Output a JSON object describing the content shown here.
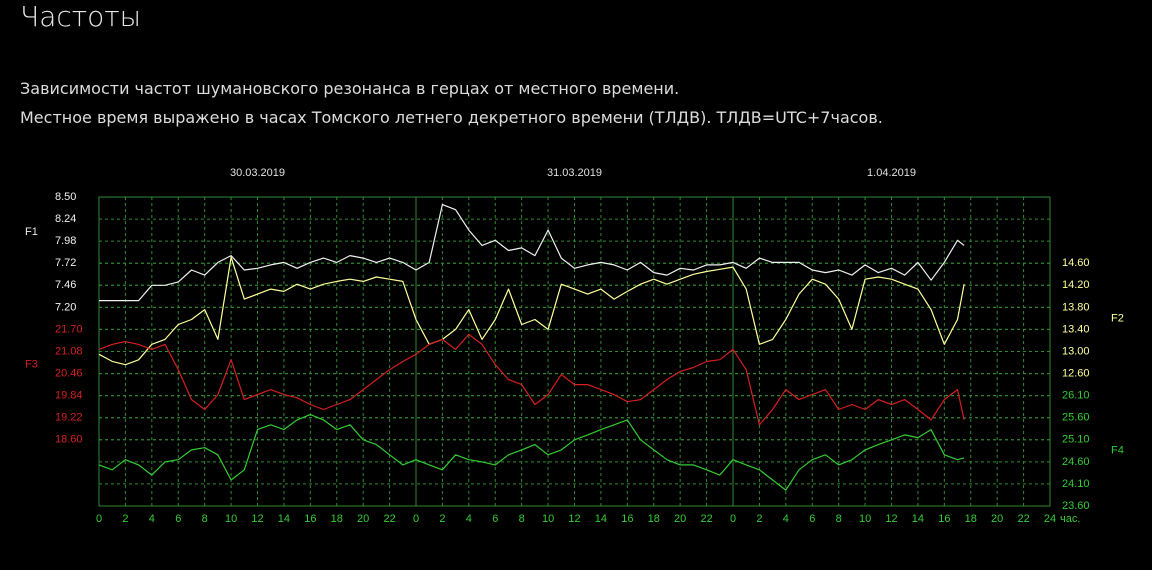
{
  "page": {
    "title": "Частоты",
    "description": [
      "Зависимости частот шумановского резонанса в герцах от местного времени.",
      "Местное время выражено в часах Томского летнего декретного времени (ТЛДВ). ТЛДВ=UTC+7часов."
    ]
  },
  "chart_data": {
    "type": "line",
    "day_labels": [
      "30.03.2019",
      "31.03.2019",
      "1.04.2019"
    ],
    "x_unit": "час.",
    "xlim": [
      0,
      72
    ],
    "xticks": [
      0,
      2,
      4,
      6,
      8,
      10,
      12,
      14,
      16,
      18,
      20,
      22,
      {
        "value": 24,
        "label": "0"
      },
      {
        "value": 26,
        "label": "2"
      },
      {
        "value": 28,
        "label": "4"
      },
      {
        "value": 30,
        "label": "6"
      },
      {
        "value": 32,
        "label": "8"
      },
      {
        "value": 34,
        "label": "10"
      },
      {
        "value": 36,
        "label": "12"
      },
      {
        "value": 38,
        "label": "14"
      },
      {
        "value": 40,
        "label": "16"
      },
      {
        "value": 42,
        "label": "18"
      },
      {
        "value": 44,
        "label": "20"
      },
      {
        "value": 46,
        "label": "22"
      },
      {
        "value": 48,
        "label": "0"
      },
      {
        "value": 50,
        "label": "2"
      },
      {
        "value": 52,
        "label": "4"
      },
      {
        "value": 54,
        "label": "6"
      },
      {
        "value": 56,
        "label": "8"
      },
      {
        "value": 58,
        "label": "10"
      },
      {
        "value": 60,
        "label": "12"
      },
      {
        "value": 62,
        "label": "14"
      },
      {
        "value": 64,
        "label": "16"
      },
      {
        "value": 66,
        "label": "18"
      },
      {
        "value": 68,
        "label": "20"
      },
      {
        "value": 70,
        "label": "22"
      },
      {
        "value": 72,
        "label": "24"
      }
    ],
    "x": [
      0,
      1,
      2,
      3,
      4,
      5,
      6,
      7,
      8,
      9,
      10,
      11,
      12,
      13,
      14,
      15,
      16,
      17,
      18,
      19,
      20,
      21,
      22,
      23,
      24,
      25,
      26,
      27,
      28,
      29,
      30,
      31,
      32,
      33,
      34,
      35,
      36,
      37,
      38,
      39,
      40,
      41,
      42,
      43,
      44,
      45,
      46,
      47,
      48,
      49,
      50,
      51,
      52,
      53,
      54,
      55,
      56,
      57,
      58,
      59,
      60,
      61,
      62,
      63,
      64,
      65,
      65.5
    ],
    "grid": true,
    "series": [
      {
        "name": "F1",
        "color": "#f0f0f0",
        "side": "left",
        "ylim": [
          4.86,
          8.5
        ],
        "yticks": [
          {
            "value": 8.5,
            "label": "8.50"
          },
          8.24,
          7.98,
          7.72,
          7.46,
          {
            "value": 7.2,
            "label": "7.20"
          }
        ],
        "values": [
          7.28,
          7.28,
          7.28,
          7.28,
          7.46,
          7.46,
          7.5,
          7.64,
          7.58,
          7.73,
          7.81,
          7.64,
          7.66,
          7.7,
          7.73,
          7.66,
          7.73,
          7.78,
          7.73,
          7.81,
          7.78,
          7.73,
          7.78,
          7.73,
          7.64,
          7.73,
          8.41,
          8.35,
          8.11,
          7.93,
          7.99,
          7.87,
          7.9,
          7.81,
          8.11,
          7.78,
          7.66,
          7.7,
          7.73,
          7.7,
          7.64,
          7.73,
          7.61,
          7.58,
          7.66,
          7.64,
          7.7,
          7.7,
          7.73,
          7.66,
          7.78,
          7.73,
          7.73,
          7.73,
          7.64,
          7.61,
          7.64,
          7.58,
          7.7,
          7.61,
          7.66,
          7.58,
          7.73,
          7.52,
          7.73,
          7.99,
          7.93
        ]
      },
      {
        "name": "F2",
        "color": "#ffff99",
        "side": "right",
        "ylim": [
          10.2,
          15.8
        ],
        "yticks": [
          {
            "value": 14.6,
            "label": "14.60"
          },
          {
            "value": 14.2,
            "label": "14.20"
          },
          {
            "value": 13.8,
            "label": "13.80"
          },
          {
            "value": 13.4,
            "label": "13.40"
          },
          {
            "value": 13.0,
            "label": "13.00"
          },
          {
            "value": 12.6,
            "label": "12.60"
          }
        ],
        "values": [
          12.95,
          12.82,
          12.76,
          12.85,
          13.13,
          13.22,
          13.49,
          13.58,
          13.76,
          13.22,
          14.71,
          13.95,
          14.04,
          14.13,
          14.09,
          14.22,
          14.13,
          14.22,
          14.27,
          14.31,
          14.27,
          14.35,
          14.31,
          14.27,
          13.58,
          13.13,
          13.22,
          13.4,
          13.76,
          13.22,
          13.58,
          14.13,
          13.49,
          13.58,
          13.4,
          14.22,
          14.13,
          14.04,
          14.13,
          13.95,
          14.09,
          14.22,
          14.31,
          14.22,
          14.31,
          14.4,
          14.45,
          14.49,
          14.53,
          14.13,
          13.13,
          13.22,
          13.58,
          14.04,
          14.31,
          14.22,
          13.95,
          13.4,
          14.31,
          14.35,
          14.31,
          14.22,
          14.13,
          13.76,
          13.13,
          13.58,
          14.22
        ]
      },
      {
        "name": "F3",
        "color": "#d42020",
        "side": "left",
        "ylim": [
          16.74,
          25.42
        ],
        "yticks": [
          {
            "value": 21.7,
            "label": "21.70"
          },
          21.08,
          20.46,
          19.84,
          19.22,
          {
            "value": 18.6,
            "label": "18.60"
          }
        ],
        "values": [
          21.14,
          21.28,
          21.36,
          21.28,
          21.14,
          21.28,
          20.57,
          19.73,
          19.45,
          19.87,
          20.85,
          19.73,
          19.87,
          20.01,
          19.87,
          19.78,
          19.59,
          19.45,
          19.59,
          19.73,
          20.01,
          20.29,
          20.57,
          20.8,
          21.0,
          21.28,
          21.42,
          21.14,
          21.56,
          21.28,
          20.71,
          20.29,
          20.15,
          19.59,
          19.87,
          20.43,
          20.15,
          20.15,
          20.01,
          19.87,
          19.67,
          19.73,
          20.01,
          20.29,
          20.52,
          20.63,
          20.8,
          20.85,
          21.14,
          20.57,
          19.02,
          19.45,
          20.01,
          19.73,
          19.87,
          20.01,
          19.45,
          19.59,
          19.45,
          19.73,
          19.59,
          19.73,
          19.45,
          19.16,
          19.73,
          20.01,
          19.16
        ]
      },
      {
        "name": "F4",
        "color": "#33cc33",
        "side": "right",
        "ylim": [
          23.6,
          30.6
        ],
        "yticks": [
          {
            "value": 26.1,
            "label": "26.10"
          },
          {
            "value": 25.6,
            "label": "25.60"
          },
          {
            "value": 25.1,
            "label": "25.10"
          },
          {
            "value": 24.6,
            "label": "24.60"
          },
          {
            "value": 24.1,
            "label": "24.10"
          },
          {
            "value": 23.6,
            "label": "23.60"
          }
        ],
        "values": [
          24.53,
          24.42,
          24.65,
          24.53,
          24.3,
          24.6,
          24.65,
          24.87,
          24.92,
          24.76,
          24.19,
          24.42,
          25.33,
          25.44,
          25.33,
          25.55,
          25.67,
          25.55,
          25.33,
          25.44,
          25.1,
          24.99,
          24.76,
          24.53,
          24.65,
          24.53,
          24.42,
          24.76,
          24.65,
          24.6,
          24.53,
          24.76,
          24.87,
          24.99,
          24.76,
          24.87,
          25.1,
          25.21,
          25.33,
          25.44,
          25.55,
          25.1,
          24.87,
          24.65,
          24.53,
          24.53,
          24.42,
          24.3,
          24.65,
          24.53,
          24.42,
          24.19,
          23.96,
          24.42,
          24.65,
          24.76,
          24.53,
          24.65,
          24.87,
          24.99,
          25.1,
          25.21,
          25.15,
          25.33,
          24.76,
          24.65,
          24.69
        ]
      }
    ]
  }
}
